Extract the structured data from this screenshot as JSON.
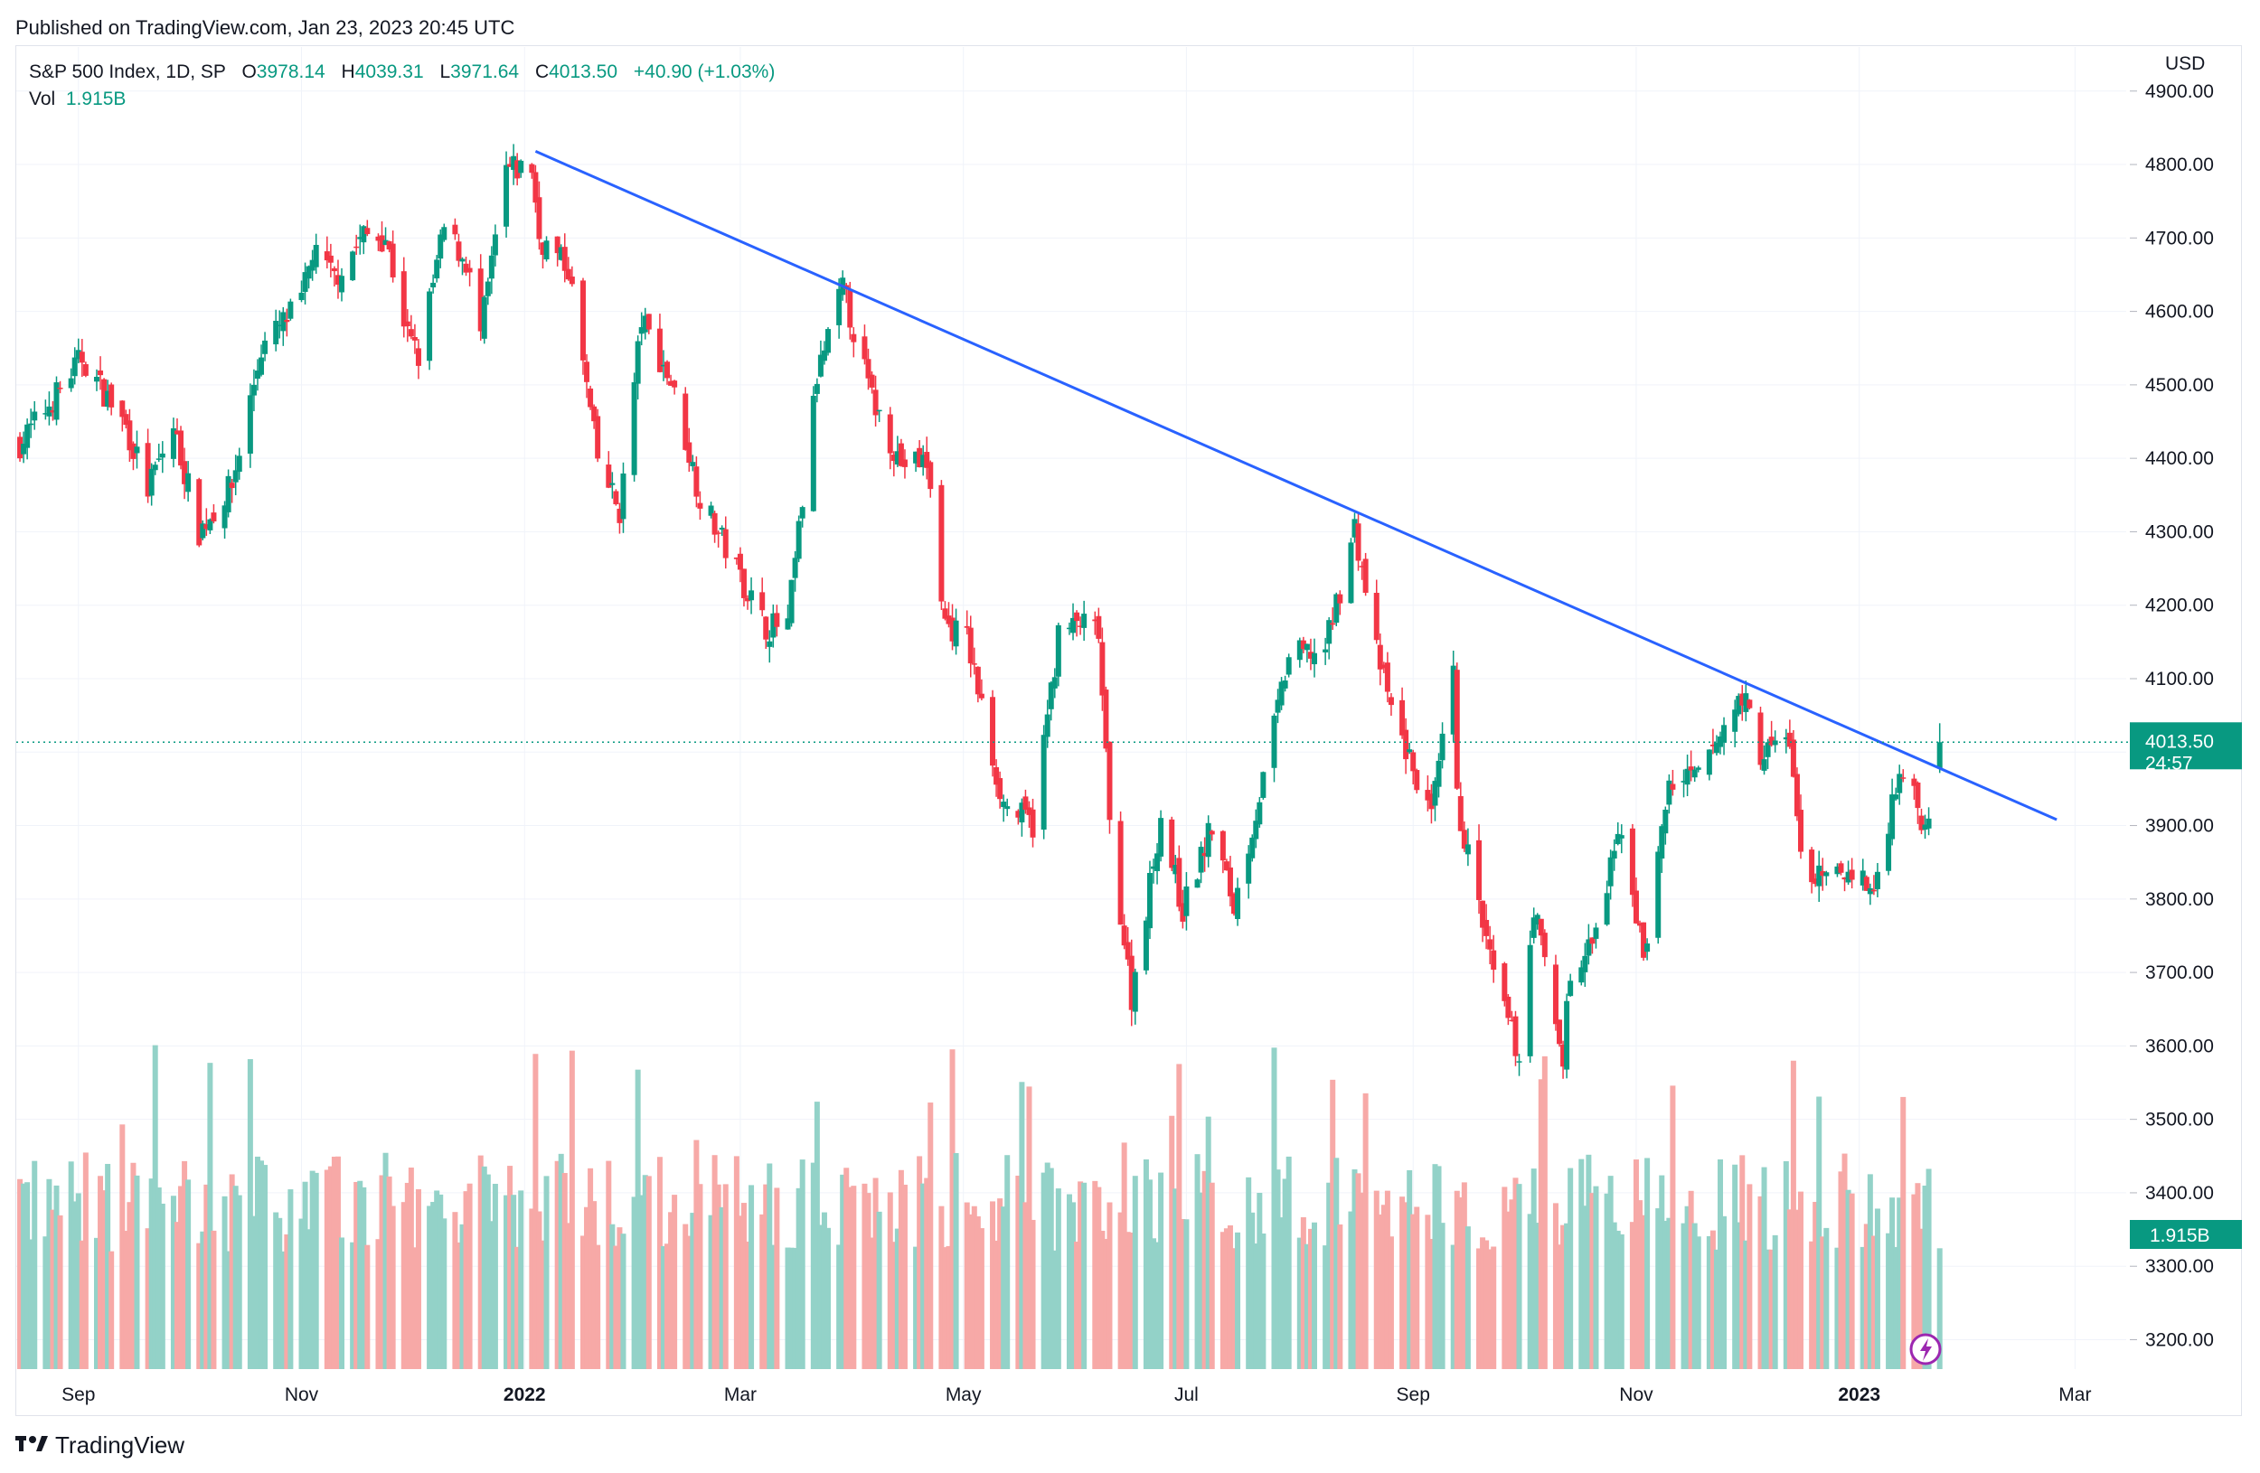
{
  "header": {
    "published_text": "Published on TradingView.com, Jan 23, 2023 20:45 UTC"
  },
  "legend": {
    "symbol": "S&P 500 Index, 1D, SP",
    "open_label": "O",
    "open_value": "3978.14",
    "high_label": "H",
    "high_value": "4039.31",
    "low_label": "L",
    "low_value": "3971.64",
    "close_label": "C",
    "close_value": "4013.50",
    "change": "+40.90 (+1.03%)",
    "volume_label": "Vol",
    "volume_value": "1.915B"
  },
  "price_axis": {
    "currency": "USD",
    "ticks": [
      "4900.00",
      "4800.00",
      "4700.00",
      "4600.00",
      "4500.00",
      "4400.00",
      "4300.00",
      "4200.00",
      "4100.00",
      "4000.00",
      "3900.00",
      "3800.00",
      "3700.00",
      "3600.00",
      "3500.00",
      "3400.00",
      "3300.00",
      "3200.00"
    ],
    "last_price_label": "4013.50",
    "countdown_label": "24:57",
    "volume_label": "1.915B"
  },
  "time_axis": {
    "labels": [
      {
        "text": "Sep",
        "bold": false,
        "date": "2021-09-01"
      },
      {
        "text": "Nov",
        "bold": false,
        "date": "2021-11-01"
      },
      {
        "text": "2022",
        "bold": true,
        "date": "2022-01-01"
      },
      {
        "text": "Mar",
        "bold": false,
        "date": "2022-03-01"
      },
      {
        "text": "May",
        "bold": false,
        "date": "2022-05-01"
      },
      {
        "text": "Jul",
        "bold": false,
        "date": "2022-07-01"
      },
      {
        "text": "Sep",
        "bold": false,
        "date": "2022-09-01"
      },
      {
        "text": "Nov",
        "bold": false,
        "date": "2022-11-01"
      },
      {
        "text": "2023",
        "bold": true,
        "date": "2023-01-01"
      },
      {
        "text": "Mar",
        "bold": false,
        "date": "2023-03-01"
      }
    ]
  },
  "colors": {
    "up": "#089981",
    "down": "#f23645",
    "vol_up": "#93d2c8",
    "vol_down": "#f7a9a7",
    "trendline": "#2962ff",
    "grid": "#f0f3fa",
    "axis_text": "#131722",
    "price_label_bg": "#089981"
  },
  "chart_data": {
    "type": "candlestick",
    "symbol": "S&P 500 Index",
    "interval": "1D",
    "ylim": [
      3160,
      4960
    ],
    "xlim": [
      "2021-08-15",
      "2023-03-15"
    ],
    "last_close": 4013.5,
    "close_series": [
      [
        "2021-08-16",
        4420
      ],
      [
        "2021-08-25",
        4480
      ],
      [
        "2021-09-02",
        4537
      ],
      [
        "2021-09-14",
        4443
      ],
      [
        "2021-09-20",
        4358
      ],
      [
        "2021-09-27",
        4443
      ],
      [
        "2021-10-04",
        4300
      ],
      [
        "2021-10-13",
        4363
      ],
      [
        "2021-10-21",
        4549
      ],
      [
        "2021-11-01",
        4613
      ],
      [
        "2021-11-04",
        4680
      ],
      [
        "2021-11-10",
        4646
      ],
      [
        "2021-11-18",
        4704
      ],
      [
        "2021-11-24",
        4701
      ],
      [
        "2021-11-30",
        4567
      ],
      [
        "2021-12-03",
        4538
      ],
      [
        "2021-12-10",
        4712
      ],
      [
        "2021-12-16",
        4668
      ],
      [
        "2021-12-20",
        4568
      ],
      [
        "2021-12-27",
        4791
      ],
      [
        "2022-01-03",
        4796
      ],
      [
        "2022-01-05",
        4700
      ],
      [
        "2022-01-13",
        4659
      ],
      [
        "2022-01-21",
        4398
      ],
      [
        "2022-01-27",
        4327
      ],
      [
        "2022-02-02",
        4589
      ],
      [
        "2022-02-10",
        4504
      ],
      [
        "2022-02-18",
        4348
      ],
      [
        "2022-02-24",
        4288
      ],
      [
        "2022-03-08",
        4170
      ],
      [
        "2022-03-14",
        4173
      ],
      [
        "2022-03-22",
        4511
      ],
      [
        "2022-03-29",
        4631
      ],
      [
        "2022-04-06",
        4481
      ],
      [
        "2022-04-14",
        4393
      ],
      [
        "2022-04-21",
        4394
      ],
      [
        "2022-04-26",
        4175
      ],
      [
        "2022-05-02",
        4155
      ],
      [
        "2022-05-09",
        3991
      ],
      [
        "2022-05-12",
        3930
      ],
      [
        "2022-05-20",
        3901
      ],
      [
        "2022-05-27",
        4158
      ],
      [
        "2022-06-02",
        4176
      ],
      [
        "2022-06-07",
        4160
      ],
      [
        "2022-06-10",
        3900
      ],
      [
        "2022-06-16",
        3667
      ],
      [
        "2022-06-24",
        3912
      ],
      [
        "2022-06-30",
        3785
      ],
      [
        "2022-07-08",
        3899
      ],
      [
        "2022-07-14",
        3790
      ],
      [
        "2022-07-22",
        3961
      ],
      [
        "2022-07-29",
        4130
      ],
      [
        "2022-08-08",
        4140
      ],
      [
        "2022-08-16",
        4305
      ],
      [
        "2022-08-22",
        4137
      ],
      [
        "2022-08-26",
        4058
      ],
      [
        "2022-09-06",
        3908
      ],
      [
        "2022-09-12",
        4110
      ],
      [
        "2022-09-13",
        3932
      ],
      [
        "2022-09-23",
        3693
      ],
      [
        "2022-09-30",
        3586
      ],
      [
        "2022-10-04",
        3791
      ],
      [
        "2022-10-12",
        3577
      ],
      [
        "2022-10-13",
        3670
      ],
      [
        "2022-10-21",
        3752
      ],
      [
        "2022-10-28",
        3901
      ],
      [
        "2022-11-03",
        3720
      ],
      [
        "2022-11-10",
        3956
      ],
      [
        "2022-11-18",
        3965
      ],
      [
        "2022-11-30",
        4080
      ],
      [
        "2022-12-05",
        3998
      ],
      [
        "2022-12-13",
        4019
      ],
      [
        "2022-12-16",
        3852
      ],
      [
        "2022-12-22",
        3822
      ],
      [
        "2022-12-30",
        3840
      ],
      [
        "2023-01-05",
        3808
      ],
      [
        "2023-01-12",
        3983
      ],
      [
        "2023-01-19",
        3899
      ],
      [
        "2023-01-23",
        4013.5
      ]
    ],
    "trendline": {
      "color": "#2962ff",
      "start": [
        "2022-01-04",
        4818
      ],
      "end": [
        "2023-02-24",
        3908
      ]
    }
  }
}
